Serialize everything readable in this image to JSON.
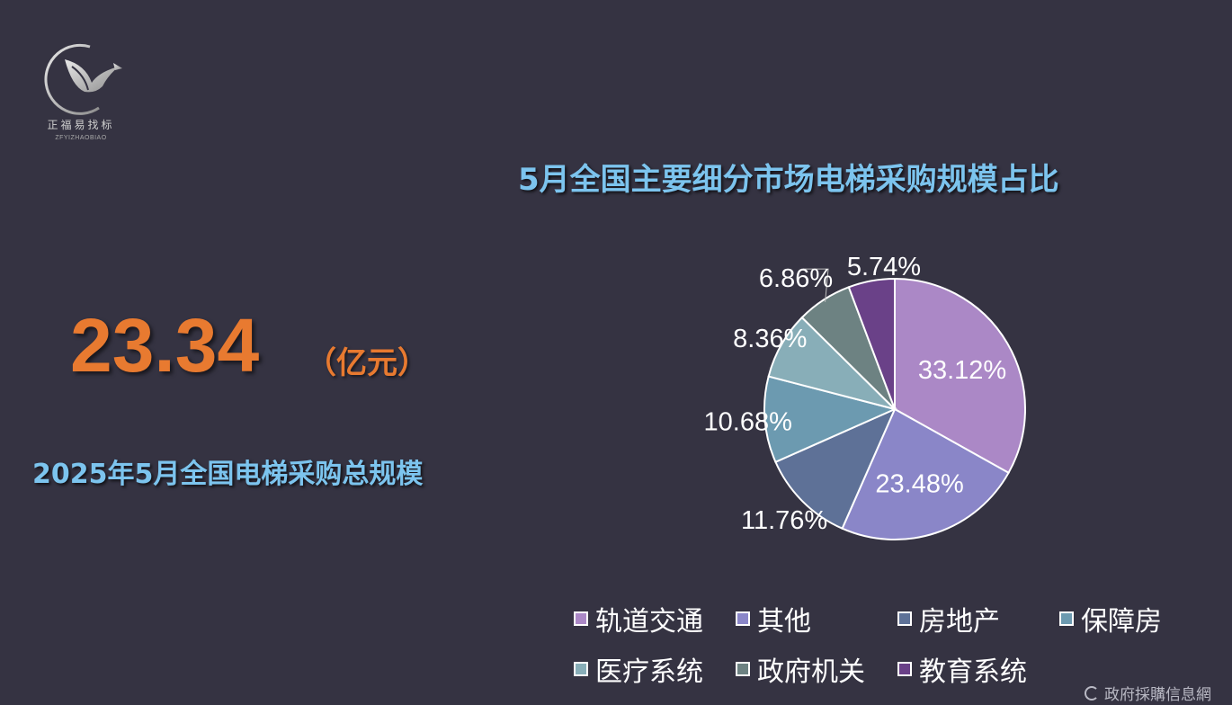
{
  "logo": {
    "name_cn": "正福易找标",
    "name_en": "ZFYIZHAOBIAO"
  },
  "headline": {
    "value": "23.34",
    "unit": "（亿元）",
    "caption": "2025年5月全国电梯采购总规模"
  },
  "chart_data": {
    "type": "pie",
    "title": "5月全国主要细分市场电梯采购规模占比",
    "categories": [
      "轨道交通",
      "其他",
      "房地产",
      "保障房",
      "医疗系统",
      "政府机关",
      "教育系统"
    ],
    "values": [
      33.12,
      23.48,
      11.76,
      10.68,
      8.36,
      6.86,
      5.74
    ],
    "labels": [
      "33.12%",
      "23.48%",
      "11.76%",
      "10.68%",
      "8.36%",
      "6.86%",
      "5.74%"
    ],
    "colors": [
      "#ab88c6",
      "#8a86c8",
      "#5e7197",
      "#6c9ab0",
      "#88aeb8",
      "#6d8282",
      "#6a4188"
    ],
    "legend_position": "bottom"
  },
  "watermark": {
    "text": "政府採購信息網"
  }
}
